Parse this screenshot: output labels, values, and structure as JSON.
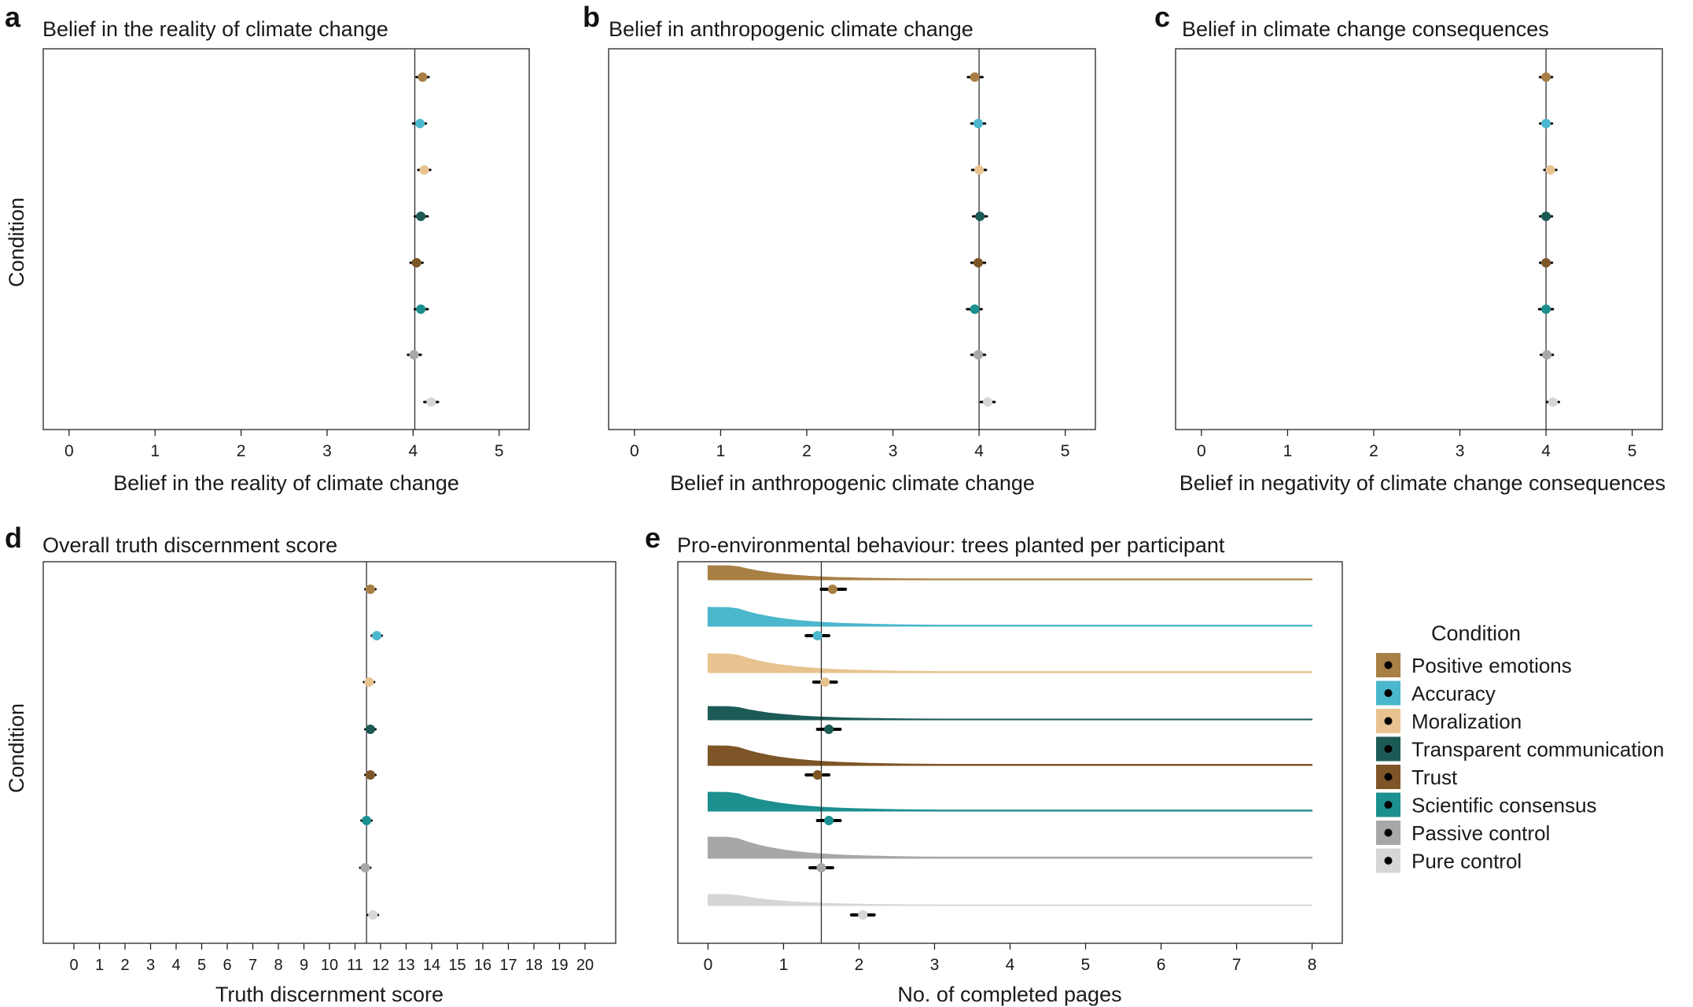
{
  "panel_letters": {
    "a": "a",
    "b": "b",
    "c": "c",
    "d": "d",
    "e": "e"
  },
  "colors": {
    "positive_emotions": "#a87f45",
    "accuracy": "#4ab7cc",
    "moralization": "#e8c38f",
    "transparent_communication": "#1c5a56",
    "trust": "#7d5526",
    "scientific_consensus": "#1c8f8f",
    "passive_control": "#a7a7a7",
    "pure_control": "#d6d6d6"
  },
  "legend": {
    "title": "Condition",
    "items": [
      {
        "label": "Positive emotions",
        "color": "#a87f45"
      },
      {
        "label": "Accuracy",
        "color": "#4ab7cc"
      },
      {
        "label": "Moralization",
        "color": "#e8c38f"
      },
      {
        "label": "Transparent communication",
        "color": "#1c5a56"
      },
      {
        "label": "Trust",
        "color": "#7d5526"
      },
      {
        "label": "Scientific consensus",
        "color": "#1c8f8f"
      },
      {
        "label": "Passive control",
        "color": "#a7a7a7"
      },
      {
        "label": "Pure control",
        "color": "#d6d6d6"
      }
    ]
  },
  "chart_data": [
    {
      "panel": "a",
      "type": "scatter",
      "title": "Belief in the reality of climate change",
      "xlabel": "Belief in the reality of climate change",
      "ylabel": "Condition",
      "xlim": [
        -0.3,
        5.35
      ],
      "xticks": [
        0,
        1,
        2,
        3,
        4,
        5
      ],
      "reference_line": 4.02,
      "categories": [
        "Positive emotions",
        "Accuracy",
        "Moralization",
        "Transparent communication",
        "Trust",
        "Scientific consensus",
        "Passive control",
        "Pure control"
      ],
      "values": [
        4.11,
        4.08,
        4.13,
        4.09,
        4.04,
        4.09,
        4.01,
        4.21
      ],
      "ci_low": [
        4.04,
        4.0,
        4.06,
        4.02,
        3.97,
        4.02,
        3.94,
        4.13
      ],
      "ci_high": [
        4.18,
        4.15,
        4.2,
        4.17,
        4.11,
        4.17,
        4.09,
        4.29
      ]
    },
    {
      "panel": "b",
      "type": "scatter",
      "title": "Belief in anthropogenic climate change",
      "xlabel": "Belief in anthropogenic climate change",
      "ylabel": "",
      "xlim": [
        -0.3,
        5.35
      ],
      "xticks": [
        0,
        1,
        2,
        3,
        4,
        5
      ],
      "reference_line": 4.0,
      "categories": [
        "Positive emotions",
        "Accuracy",
        "Moralization",
        "Transparent communication",
        "Trust",
        "Scientific consensus",
        "Passive control",
        "Pure control"
      ],
      "values": [
        3.95,
        3.99,
        4.0,
        4.01,
        3.99,
        3.95,
        3.99,
        4.1
      ],
      "ci_low": [
        3.87,
        3.91,
        3.92,
        3.93,
        3.91,
        3.86,
        3.91,
        4.02
      ],
      "ci_high": [
        4.04,
        4.07,
        4.08,
        4.09,
        4.07,
        4.03,
        4.07,
        4.18
      ]
    },
    {
      "panel": "c",
      "type": "scatter",
      "title": "Belief in climate change consequences",
      "xlabel": "Belief in negativity of climate change consequences",
      "ylabel": "",
      "xlim": [
        -0.3,
        5.35
      ],
      "xticks": [
        0,
        1,
        2,
        3,
        4,
        5
      ],
      "reference_line": 4.0,
      "categories": [
        "Positive emotions",
        "Accuracy",
        "Moralization",
        "Transparent communication",
        "Trust",
        "Scientific consensus",
        "Passive control",
        "Pure control"
      ],
      "values": [
        4.0,
        4.0,
        4.05,
        4.0,
        4.0,
        4.0,
        4.01,
        4.08
      ],
      "ci_low": [
        3.93,
        3.93,
        3.98,
        3.93,
        3.93,
        3.92,
        3.94,
        4.01
      ],
      "ci_high": [
        4.07,
        4.07,
        4.12,
        4.07,
        4.07,
        4.08,
        4.08,
        4.15
      ]
    },
    {
      "panel": "d",
      "type": "scatter",
      "title": "Overall truth discernment score",
      "xlabel": "Truth discernment score",
      "ylabel": "Condition",
      "xlim": [
        -1.2,
        21.2
      ],
      "xticks": [
        0,
        1,
        2,
        3,
        4,
        5,
        6,
        7,
        8,
        9,
        10,
        11,
        12,
        13,
        14,
        15,
        16,
        17,
        18,
        19,
        20
      ],
      "reference_line": 11.45,
      "categories": [
        "Positive emotions",
        "Accuracy",
        "Moralization",
        "Transparent communication",
        "Trust",
        "Scientific consensus",
        "Passive control",
        "Pure control"
      ],
      "values": [
        11.6,
        11.85,
        11.55,
        11.6,
        11.6,
        11.45,
        11.4,
        11.7
      ],
      "ci_low": [
        11.4,
        11.65,
        11.35,
        11.4,
        11.4,
        11.25,
        11.2,
        11.5
      ],
      "ci_high": [
        11.8,
        12.05,
        11.75,
        11.8,
        11.8,
        11.65,
        11.6,
        11.9
      ]
    },
    {
      "panel": "e",
      "type": "area",
      "title": "Pro-environmental behaviour: trees planted per participant",
      "xlabel": "No. of completed pages",
      "ylabel": "",
      "xlim": [
        -0.4,
        8.4
      ],
      "xticks": [
        0,
        1,
        2,
        3,
        4,
        5,
        6,
        7,
        8
      ],
      "reference_line": 1.5,
      "categories": [
        "Positive emotions",
        "Accuracy",
        "Moralization",
        "Transparent communication",
        "Trust",
        "Scientific consensus",
        "Passive control",
        "Pure control"
      ],
      "values": [
        1.65,
        1.45,
        1.55,
        1.6,
        1.45,
        1.6,
        1.5,
        2.05
      ],
      "ci_low": [
        1.5,
        1.3,
        1.4,
        1.45,
        1.3,
        1.45,
        1.35,
        1.9
      ],
      "ci_high": [
        1.82,
        1.6,
        1.7,
        1.75,
        1.6,
        1.75,
        1.65,
        2.2
      ]
    }
  ]
}
